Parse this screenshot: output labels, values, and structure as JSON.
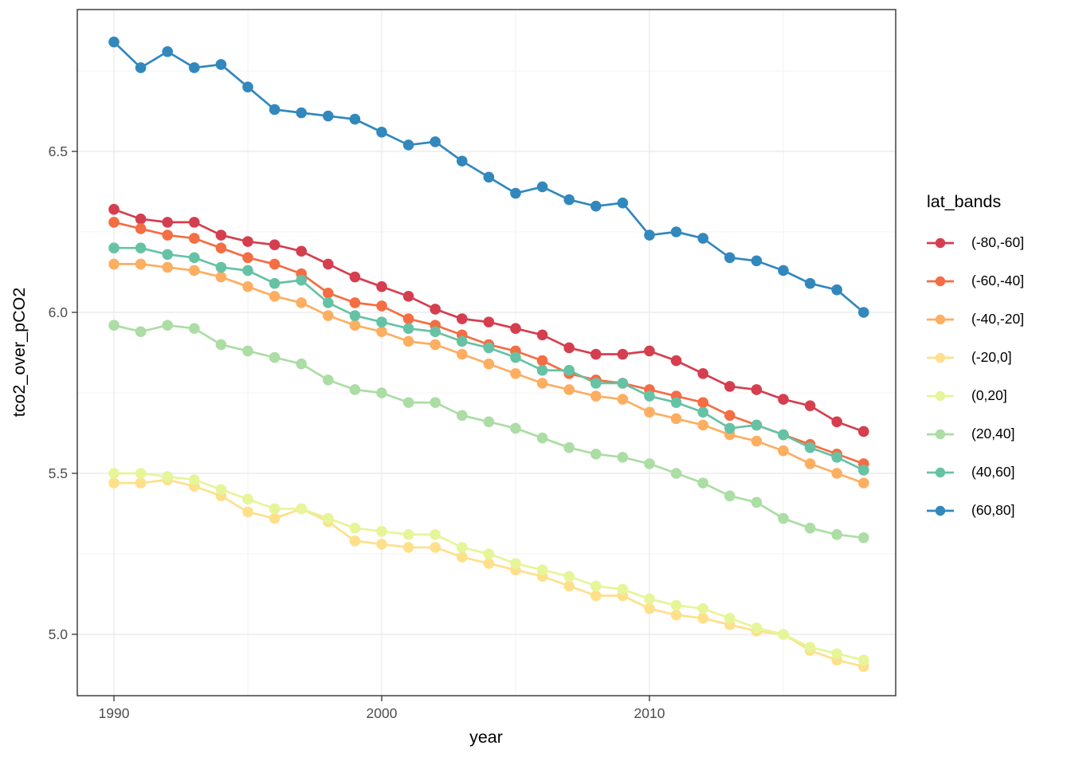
{
  "chart_data": {
    "type": "line",
    "title": "",
    "xlabel": "year",
    "ylabel": "tco2_over_pCO2",
    "legend_title": "lat_bands",
    "legend_position": "right",
    "grid": true,
    "marker": "point",
    "xlim": [
      1988.6,
      2019.2
    ],
    "ylim": [
      4.8,
      6.94
    ],
    "x_ticks": [
      1990,
      2000,
      2010
    ],
    "x_tick_labels": [
      "1990",
      "2000",
      "2010"
    ],
    "x_minor_ticks": [
      1995,
      2005,
      2015
    ],
    "y_ticks": [
      5.0,
      5.5,
      6.0,
      6.5
    ],
    "y_tick_labels": [
      "5.0",
      "5.5",
      "6.0",
      "6.5"
    ],
    "y_minor_ticks": [
      5.25,
      5.75,
      6.25,
      6.75
    ],
    "x": [
      1990,
      1991,
      1992,
      1993,
      1994,
      1995,
      1996,
      1997,
      1998,
      1999,
      2000,
      2001,
      2002,
      2003,
      2004,
      2005,
      2006,
      2007,
      2008,
      2009,
      2010,
      2011,
      2012,
      2013,
      2014,
      2015,
      2016,
      2017,
      2018
    ],
    "series": [
      {
        "name": "(-80,-60]",
        "color": "#d53e4f",
        "values": [
          6.32,
          6.29,
          6.28,
          6.28,
          6.24,
          6.22,
          6.21,
          6.19,
          6.15,
          6.11,
          6.08,
          6.05,
          6.01,
          5.98,
          5.97,
          5.95,
          5.93,
          5.89,
          5.87,
          5.87,
          5.88,
          5.85,
          5.81,
          5.77,
          5.76,
          5.73,
          5.71,
          5.66,
          5.63
        ]
      },
      {
        "name": "(-60,-40]",
        "color": "#f46d43",
        "values": [
          6.28,
          6.26,
          6.24,
          6.23,
          6.2,
          6.17,
          6.15,
          6.12,
          6.06,
          6.03,
          6.02,
          5.98,
          5.96,
          5.93,
          5.9,
          5.88,
          5.85,
          5.81,
          5.79,
          5.78,
          5.76,
          5.74,
          5.72,
          5.68,
          5.65,
          5.62,
          5.59,
          5.56,
          5.53
        ]
      },
      {
        "name": "(-40,-20]",
        "color": "#fdae61",
        "values": [
          6.15,
          6.15,
          6.14,
          6.13,
          6.11,
          6.08,
          6.05,
          6.03,
          5.99,
          5.96,
          5.94,
          5.91,
          5.9,
          5.87,
          5.84,
          5.81,
          5.78,
          5.76,
          5.74,
          5.73,
          5.69,
          5.67,
          5.65,
          5.62,
          5.6,
          5.57,
          5.53,
          5.5,
          5.47
        ]
      },
      {
        "name": "(-20,0]",
        "color": "#fee08b",
        "values": [
          5.47,
          5.47,
          5.48,
          5.46,
          5.43,
          5.38,
          5.36,
          5.39,
          5.35,
          5.29,
          5.28,
          5.27,
          5.27,
          5.24,
          5.22,
          5.2,
          5.18,
          5.15,
          5.12,
          5.12,
          5.08,
          5.06,
          5.05,
          5.03,
          5.01,
          5.0,
          4.95,
          4.92,
          4.9
        ]
      },
      {
        "name": "(0,20]",
        "color": "#e6f598",
        "values": [
          5.5,
          5.5,
          5.49,
          5.48,
          5.45,
          5.42,
          5.39,
          5.39,
          5.36,
          5.33,
          5.32,
          5.31,
          5.31,
          5.27,
          5.25,
          5.22,
          5.2,
          5.18,
          5.15,
          5.14,
          5.11,
          5.09,
          5.08,
          5.05,
          5.02,
          5.0,
          4.96,
          4.94,
          4.92
        ]
      },
      {
        "name": "(20,40]",
        "color": "#abdda4",
        "values": [
          5.96,
          5.94,
          5.96,
          5.95,
          5.9,
          5.88,
          5.86,
          5.84,
          5.79,
          5.76,
          5.75,
          5.72,
          5.72,
          5.68,
          5.66,
          5.64,
          5.61,
          5.58,
          5.56,
          5.55,
          5.53,
          5.5,
          5.47,
          5.43,
          5.41,
          5.36,
          5.33,
          5.31,
          5.3
        ]
      },
      {
        "name": "(40,60]",
        "color": "#66c2a5",
        "values": [
          6.2,
          6.2,
          6.18,
          6.17,
          6.14,
          6.13,
          6.09,
          6.1,
          6.03,
          5.99,
          5.97,
          5.95,
          5.94,
          5.91,
          5.89,
          5.86,
          5.82,
          5.82,
          5.78,
          5.78,
          5.74,
          5.72,
          5.69,
          5.64,
          5.65,
          5.62,
          5.58,
          5.55,
          5.51
        ]
      },
      {
        "name": "(60,80]",
        "color": "#3288bd",
        "values": [
          6.84,
          6.76,
          6.81,
          6.76,
          6.77,
          6.7,
          6.63,
          6.62,
          6.61,
          6.6,
          6.56,
          6.52,
          6.53,
          6.47,
          6.42,
          6.37,
          6.39,
          6.35,
          6.33,
          6.34,
          6.24,
          6.25,
          6.23,
          6.17,
          6.16,
          6.13,
          6.09,
          6.07,
          6.0
        ]
      }
    ]
  }
}
